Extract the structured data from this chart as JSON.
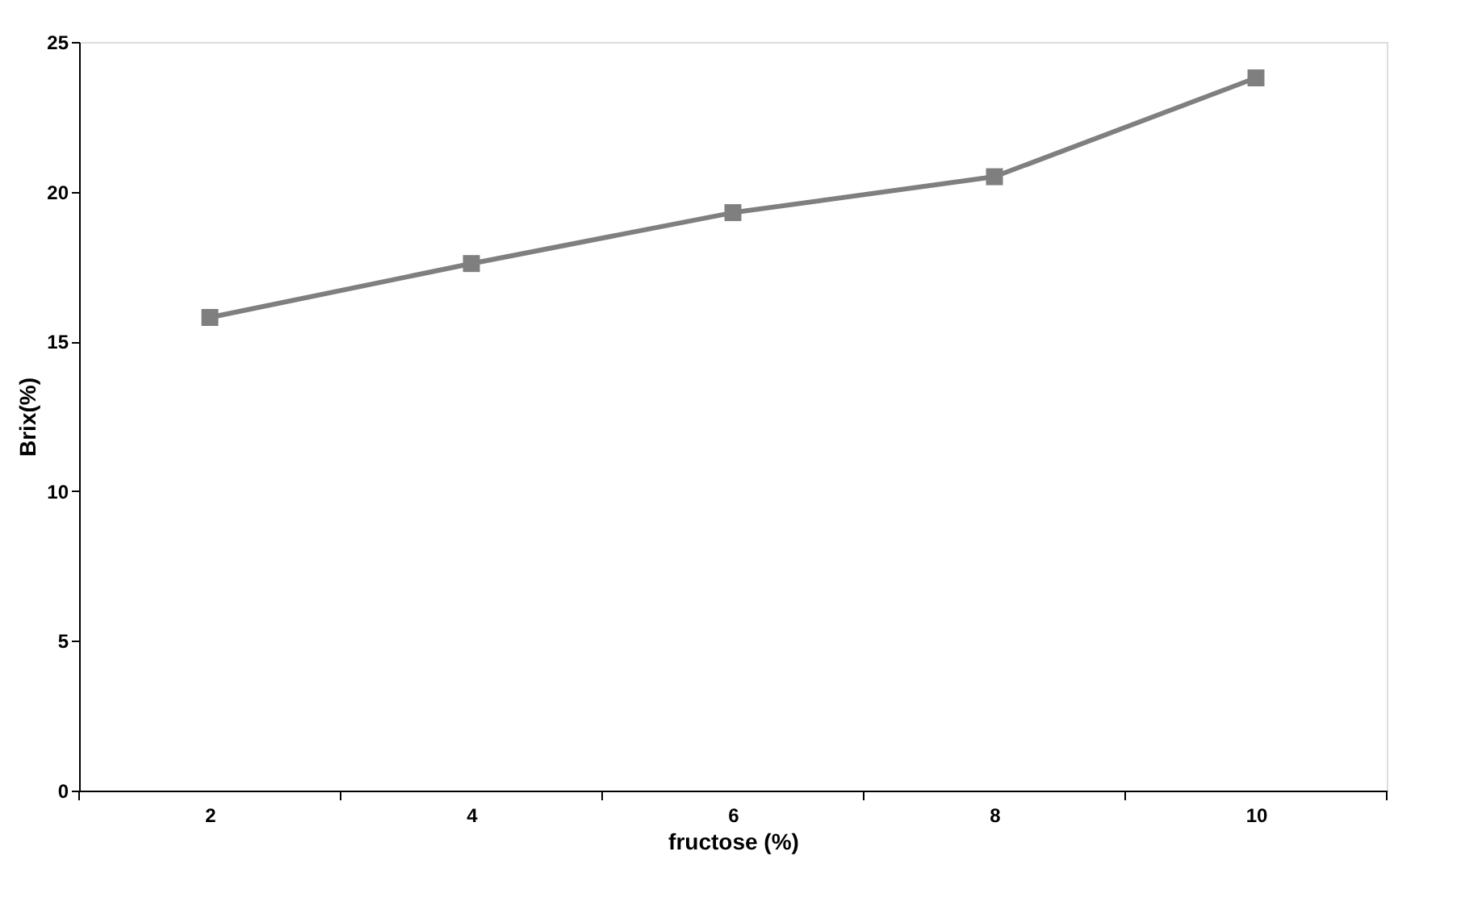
{
  "chart_data": {
    "type": "line",
    "xlabel": "fructose (%)",
    "ylabel": "Brix(%)",
    "categories": [
      "2",
      "4",
      "6",
      "8",
      "10"
    ],
    "series": [
      {
        "color": "#7f7f7f",
        "values": [
          15.8,
          17.6,
          19.3,
          20.5,
          23.8
        ]
      }
    ],
    "ylim": [
      0,
      25
    ],
    "yticks": [
      0,
      5,
      10,
      15,
      20,
      25
    ],
    "grid": false,
    "marker": "square",
    "line_style": "solid"
  }
}
